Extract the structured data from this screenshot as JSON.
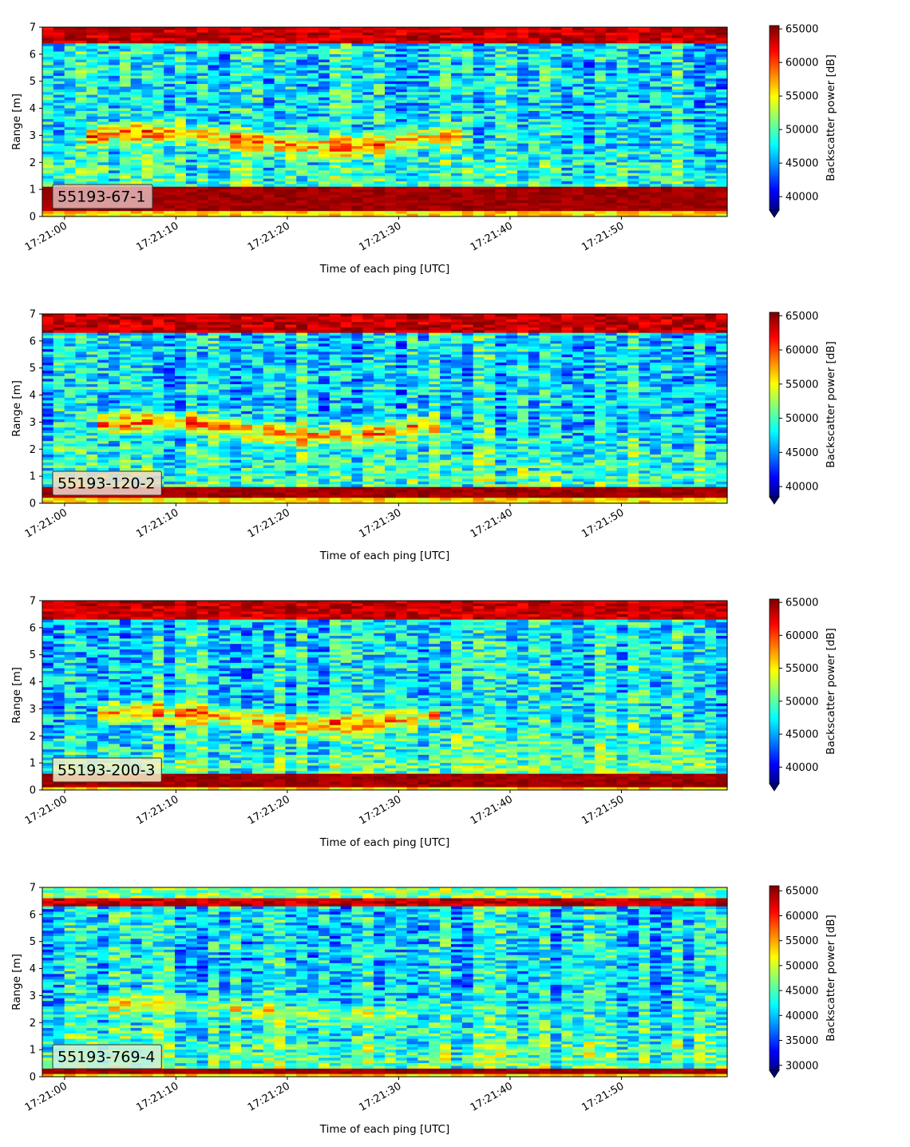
{
  "figure": {
    "colormap": "jet",
    "colormap_stops": [
      "#00007f",
      "#0000ff",
      "#00ffff",
      "#ffff00",
      "#ff0000",
      "#7f0000"
    ],
    "grid": false
  },
  "chart_data": [
    {
      "type": "heatmap",
      "tag": "55193-67-1",
      "tag_color": "#e3b9b9",
      "xlabel": "Time of each ping [UTC]",
      "ylabel": "Range [m]",
      "colorbar_label": "Backscatter power [dB]",
      "x_ticks": [
        "17:21:00",
        "17:21:10",
        "17:21:20",
        "17:21:30",
        "17:21:40",
        "17:21:50"
      ],
      "y_ticks": [
        0,
        1,
        2,
        3,
        4,
        5,
        6,
        7
      ],
      "colorbar_ticks": [
        40000,
        45000,
        50000,
        55000,
        60000,
        65000
      ],
      "xlim_seconds_after_17_21_00": [
        -2,
        59.5
      ],
      "ylim": [
        0,
        7
      ],
      "clim": [
        38000,
        65500
      ],
      "colorbar_extend": "min",
      "features": {
        "bottom_band_m": [
          0.2,
          1.1
        ],
        "surface_band_m": [
          6.4,
          7.0
        ],
        "layer_depth_m": [
          2.3,
          3.4
        ],
        "layer_time_s": [
          2,
          36
        ]
      }
    },
    {
      "type": "heatmap",
      "tag": "55193-120-2",
      "tag_color": "#f3d8cb",
      "xlabel": "Time of each ping [UTC]",
      "ylabel": "Range [m]",
      "colorbar_label": "Backscatter power [dB]",
      "x_ticks": [
        "17:21:00",
        "17:21:10",
        "17:21:20",
        "17:21:30",
        "17:21:40",
        "17:21:50"
      ],
      "y_ticks": [
        0,
        1,
        2,
        3,
        4,
        5,
        6,
        7
      ],
      "colorbar_ticks": [
        40000,
        45000,
        50000,
        55000,
        60000,
        65000
      ],
      "xlim_seconds_after_17_21_00": [
        -2,
        59.5
      ],
      "ylim": [
        0,
        7
      ],
      "clim": [
        38500,
        65500
      ],
      "colorbar_extend": "min",
      "features": {
        "bottom_band_m": [
          0.2,
          0.6
        ],
        "surface_band_m": [
          6.3,
          7.0
        ],
        "layer_depth_m": [
          2.2,
          3.3
        ],
        "layer_time_s": [
          3,
          34
        ]
      }
    },
    {
      "type": "heatmap",
      "tag": "55193-200-3",
      "tag_color": "#f7efc8",
      "xlabel": "Time of each ping [UTC]",
      "ylabel": "Range [m]",
      "colorbar_label": "Backscatter power [dB]",
      "x_ticks": [
        "17:21:00",
        "17:21:10",
        "17:21:20",
        "17:21:30",
        "17:21:40",
        "17:21:50"
      ],
      "y_ticks": [
        0,
        1,
        2,
        3,
        4,
        5,
        6,
        7
      ],
      "colorbar_ticks": [
        40000,
        45000,
        50000,
        55000,
        60000,
        65000
      ],
      "xlim_seconds_after_17_21_00": [
        -2,
        59.5
      ],
      "ylim": [
        0,
        7
      ],
      "clim": [
        37500,
        65500
      ],
      "colorbar_extend": "min",
      "features": {
        "bottom_band_m": [
          0.15,
          0.6
        ],
        "surface_band_m": [
          6.3,
          7.0
        ],
        "layer_depth_m": [
          2.1,
          3.2
        ],
        "layer_time_s": [
          3,
          34
        ]
      }
    },
    {
      "type": "heatmap",
      "tag": "55193-769-4",
      "tag_color": "#cfeee0",
      "xlabel": "Time of each ping [UTC]",
      "ylabel": "Range [m]",
      "colorbar_label": "Backscatter power [dB]",
      "x_ticks": [
        "17:21:00",
        "17:21:10",
        "17:21:20",
        "17:21:30",
        "17:21:40",
        "17:21:50"
      ],
      "y_ticks": [
        0,
        1,
        2,
        3,
        4,
        5,
        6,
        7
      ],
      "colorbar_ticks": [
        30000,
        35000,
        40000,
        45000,
        50000,
        55000,
        60000,
        65000
      ],
      "xlim_seconds_after_17_21_00": [
        -2,
        59.5
      ],
      "ylim": [
        0,
        7
      ],
      "clim": [
        29000,
        66000
      ],
      "colorbar_extend": "min",
      "features": {
        "bottom_band_m": [
          0.15,
          0.35
        ],
        "surface_band_m": [
          6.3,
          6.6
        ],
        "layer_depth_m": [
          2.0,
          3.0
        ],
        "layer_time_s": [
          3,
          32
        ]
      }
    }
  ]
}
